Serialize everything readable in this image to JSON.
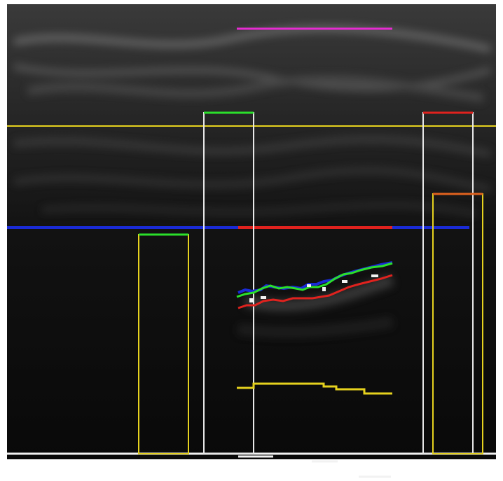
{
  "image": {
    "kind": "ultrasound-scan-with-overlays",
    "text": ""
  },
  "colors": {
    "background": "#ffffff",
    "scan_dark": "#0b0b0b",
    "magenta": "#e62bd1",
    "yellow": "#e6d21e",
    "blue": "#1a2bd6",
    "red": "#e0221e",
    "green": "#2be02b",
    "white": "#f2f2f2"
  }
}
